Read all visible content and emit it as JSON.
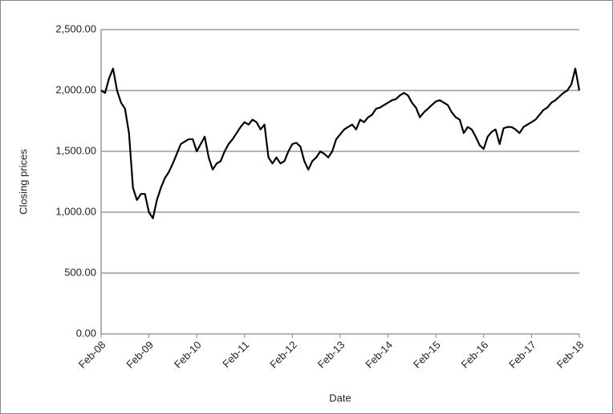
{
  "chart_data": {
    "type": "line",
    "x_label": "Date",
    "y_label": "Closing prices",
    "categories": [
      "Feb-08",
      null,
      null,
      null,
      null,
      null,
      null,
      null,
      null,
      null,
      null,
      null,
      "Feb-09",
      null,
      null,
      null,
      null,
      null,
      null,
      null,
      null,
      null,
      null,
      null,
      "Feb-10",
      null,
      null,
      null,
      null,
      null,
      null,
      null,
      null,
      null,
      null,
      null,
      "Feb-11",
      null,
      null,
      null,
      null,
      null,
      null,
      null,
      null,
      null,
      null,
      null,
      "Feb-12",
      null,
      null,
      null,
      null,
      null,
      null,
      null,
      null,
      null,
      null,
      null,
      "Feb-13",
      null,
      null,
      null,
      null,
      null,
      null,
      null,
      null,
      null,
      null,
      null,
      "Feb-14",
      null,
      null,
      null,
      null,
      null,
      null,
      null,
      null,
      null,
      null,
      null,
      "Feb-15",
      null,
      null,
      null,
      null,
      null,
      null,
      null,
      null,
      null,
      null,
      null,
      "Feb-16",
      null,
      null,
      null,
      null,
      null,
      null,
      null,
      null,
      null,
      null,
      null,
      "Feb-17",
      null,
      null,
      null,
      null,
      null,
      null,
      null,
      null,
      null,
      null,
      null,
      "Feb-18"
    ],
    "series": [
      {
        "color": "#000000",
        "values": [
          2000,
          1980,
          2100,
          2180,
          2000,
          1900,
          1850,
          1650,
          1200,
          1100,
          1150,
          1150,
          1000,
          950,
          1100,
          1200,
          1280,
          1330,
          1400,
          1480,
          1560,
          1580,
          1600,
          1600,
          1500,
          1560,
          1620,
          1450,
          1350,
          1400,
          1420,
          1500,
          1560,
          1600,
          1650,
          1700,
          1740,
          1720,
          1760,
          1740,
          1680,
          1720,
          1450,
          1400,
          1450,
          1400,
          1420,
          1500,
          1560,
          1570,
          1540,
          1420,
          1350,
          1420,
          1450,
          1500,
          1480,
          1450,
          1500,
          1600,
          1640,
          1680,
          1700,
          1720,
          1680,
          1760,
          1740,
          1780,
          1800,
          1850,
          1860,
          1880,
          1900,
          1920,
          1930,
          1960,
          1980,
          1960,
          1900,
          1860,
          1780,
          1820,
          1850,
          1880,
          1910,
          1920,
          1900,
          1880,
          1820,
          1780,
          1760,
          1650,
          1700,
          1680,
          1620,
          1550,
          1520,
          1620,
          1660,
          1680,
          1560,
          1690,
          1700,
          1700,
          1680,
          1650,
          1700,
          1720,
          1740,
          1760,
          1800,
          1840,
          1860,
          1900,
          1920,
          1950,
          1980,
          2000,
          2050,
          2180,
          2000
        ]
      }
    ],
    "ylim": [
      0,
      2500
    ],
    "yticks": [
      {
        "value": 0,
        "label": "0.00"
      },
      {
        "value": 500,
        "label": "500.00"
      },
      {
        "value": 1000,
        "label": "1,000.00"
      },
      {
        "value": 1500,
        "label": "1,500.00"
      },
      {
        "value": 2000,
        "label": "2,000.00"
      },
      {
        "value": 2500,
        "label": "2,500.00"
      }
    ],
    "grid": true
  }
}
